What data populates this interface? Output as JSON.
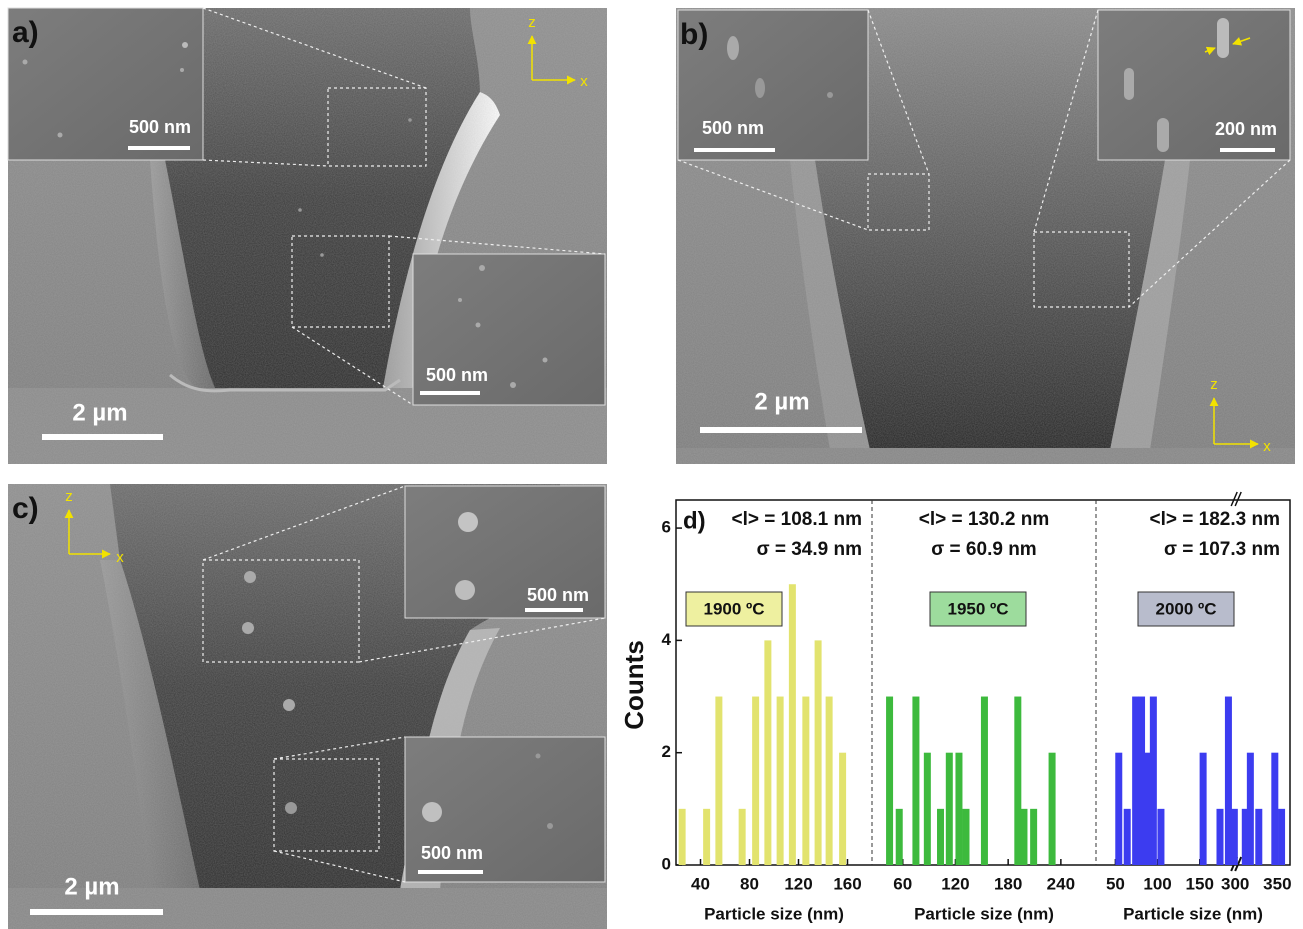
{
  "panels": [
    {
      "label": "a)",
      "scale_bar": "2 µm",
      "inset_scales": [
        "500 nm",
        "500 nm"
      ],
      "axes": [
        "z",
        "x"
      ]
    },
    {
      "label": "b)",
      "scale_bar": "2 µm",
      "inset_scales": [
        "500 nm",
        "200 nm"
      ],
      "axes": [
        "z",
        "x"
      ]
    },
    {
      "label": "c)",
      "scale_bar": "2 µm",
      "inset_scales": [
        "500 nm",
        "500 nm"
      ],
      "axes": [
        "z",
        "x"
      ]
    }
  ],
  "chart_data": {
    "type": "bar",
    "panel_label": "d)",
    "y_label": "Counts",
    "ylim": [
      0,
      6.5
    ],
    "yticks": [
      0,
      2,
      4,
      6
    ],
    "groups": [
      {
        "x_label": "Particle size (nm)",
        "xlim": [
          20,
          180
        ],
        "xticks": [
          40,
          80,
          120,
          160
        ],
        "annotations": [
          "<l> = 108.1 nm",
          "σ = 34.9 nm"
        ],
        "series": [
          {
            "name": "1900 ºC",
            "color": "#e2e36e",
            "label_color": "#eef0a0",
            "x": [
              25,
              45,
              55,
              74,
              85,
              95,
              105,
              115,
              126,
              136,
              145,
              156
            ],
            "values": [
              1,
              1,
              3,
              1,
              3,
              4,
              3,
              5,
              3,
              4,
              3,
              2
            ]
          }
        ]
      },
      {
        "x_label": "Particle size (nm)",
        "xlim": [
          25,
          280
        ],
        "xticks": [
          60,
          120,
          180,
          240
        ],
        "annotations": [
          "<l> = 130.2 nm",
          "σ = 60.9 nm"
        ],
        "series": [
          {
            "name": "1950 ºC",
            "color": "#3dba3d",
            "label_color": "#9ddc9d",
            "x": [
              45,
              56,
              75,
              88,
              103,
              113,
              124,
              132,
              153,
              191,
              198,
              209,
              230
            ],
            "values": [
              3,
              1,
              3,
              2,
              1,
              2,
              2,
              1,
              3,
              3,
              1,
              1,
              2
            ]
          }
        ]
      },
      {
        "x_label": "Particle size (nm)",
        "xlim": [
          27,
          365
        ],
        "xbreak": [
          192,
          300
        ],
        "xticks": [
          50,
          100,
          150,
          300,
          350
        ],
        "annotations": [
          "<l> = 182.3 nm",
          "σ = 107.3 nm"
        ],
        "series": [
          {
            "name": "2000 ºC",
            "color": "#3c3cf0",
            "label_color": "#b8bccc",
            "x": [
              54,
              64,
              74,
              81,
              89,
              95,
              104,
              154,
              174,
              184,
              191,
              312,
              318,
              328,
              347,
              355
            ],
            "values": [
              2,
              1,
              3,
              3,
              2,
              3,
              1,
              2,
              1,
              3,
              1,
              1,
              2,
              1,
              2,
              1
            ]
          }
        ]
      }
    ]
  }
}
